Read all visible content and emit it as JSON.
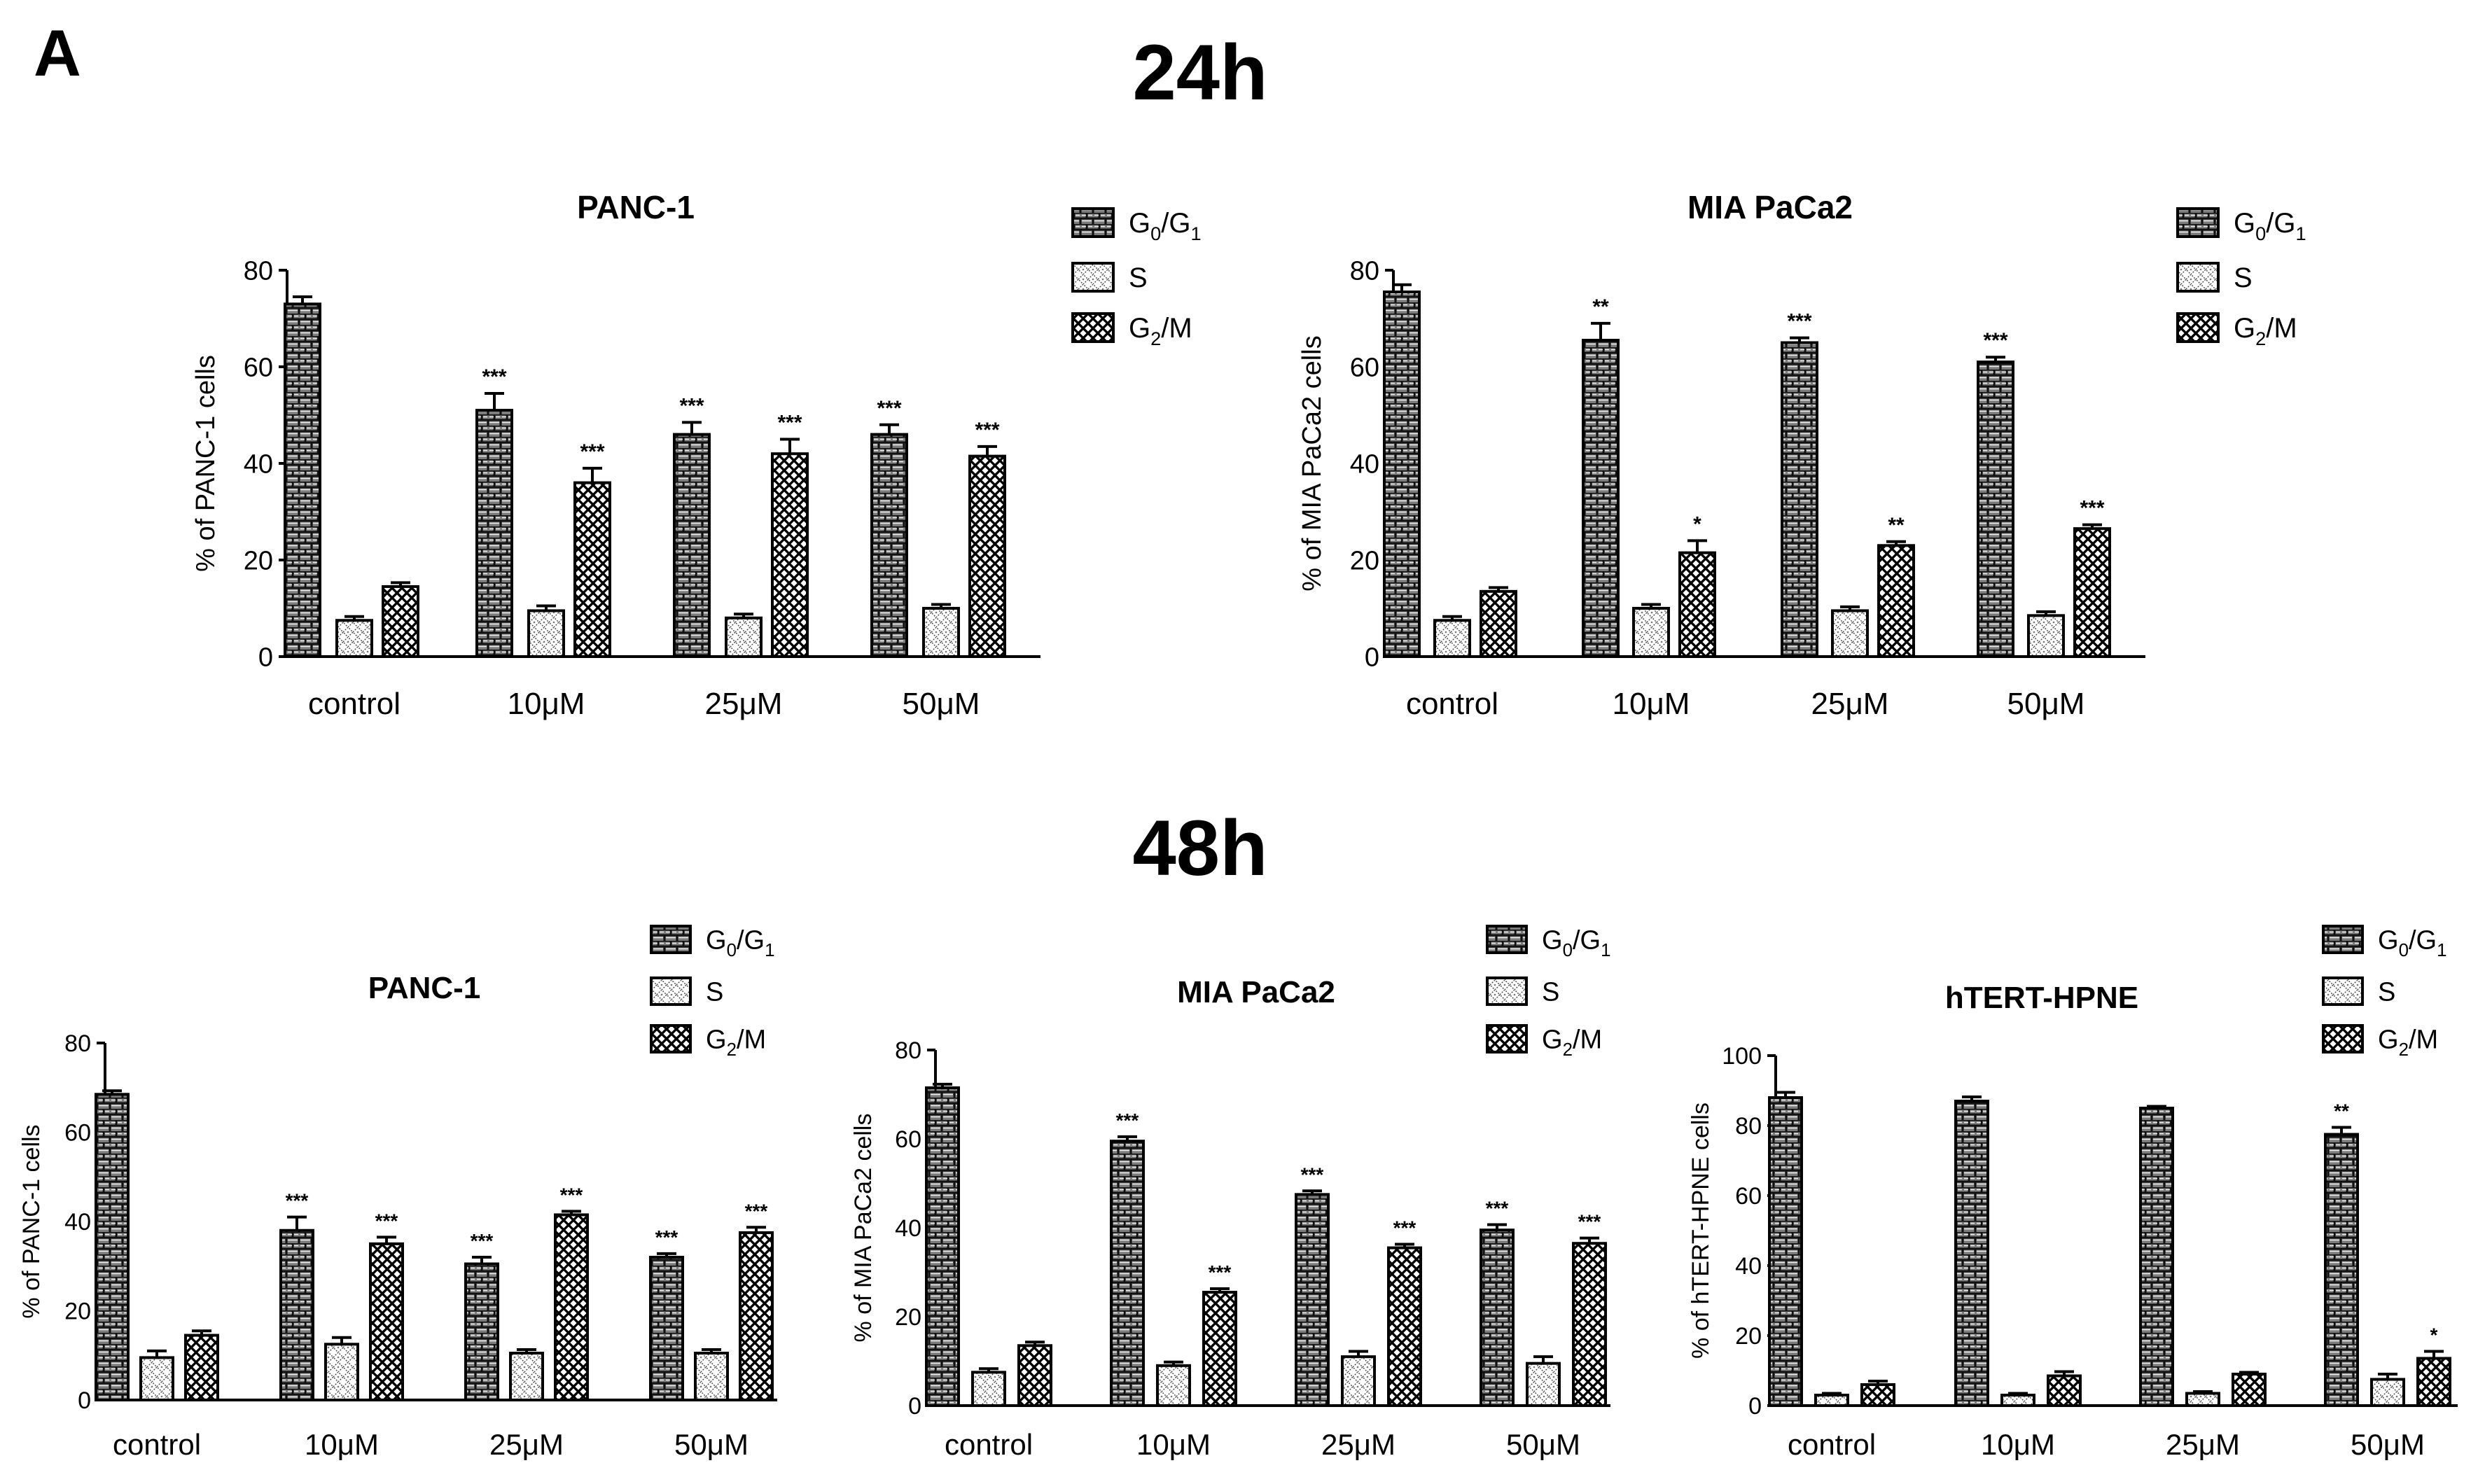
{
  "figure": {
    "panel_label": "A",
    "section_24h": "24h",
    "section_48h": "48h"
  },
  "legend": {
    "g0g1": {
      "main": "G",
      "sub1": "0",
      "mid": "/G",
      "sub2": "1"
    },
    "s": {
      "main": "S"
    },
    "g2m": {
      "main": "G",
      "sub1": "2",
      "rest": "/M"
    }
  },
  "chart_data": [
    {
      "id": "c24_panc",
      "type": "bar",
      "title": "PANC-1",
      "time": "24h",
      "ylabel": "% of PANC-1 cells",
      "ylim": [
        0,
        80
      ],
      "yticks": [
        0,
        20,
        40,
        60,
        80
      ],
      "categories": [
        "control",
        "10μM",
        "25μM",
        "50μM"
      ],
      "series": [
        {
          "name": "G0/G1",
          "values": [
            73,
            51,
            46,
            46
          ],
          "errors": [
            1.5,
            3.5,
            2.5,
            2
          ],
          "sig": [
            "",
            "***",
            "***",
            "***"
          ]
        },
        {
          "name": "S",
          "values": [
            7.5,
            9.5,
            8,
            10
          ],
          "errors": [
            0.8,
            1,
            0.8,
            0.8
          ],
          "sig": [
            "",
            "",
            "",
            ""
          ]
        },
        {
          "name": "G2/M",
          "values": [
            14.5,
            36,
            42,
            41.5
          ],
          "errors": [
            0.8,
            3,
            3,
            2
          ],
          "sig": [
            "",
            "***",
            "***",
            "***"
          ]
        }
      ]
    },
    {
      "id": "c24_mia",
      "type": "bar",
      "title": "MIA PaCa2",
      "time": "24h",
      "ylabel": "% of MIA PaCa2 cells",
      "ylim": [
        0,
        80
      ],
      "yticks": [
        0,
        20,
        40,
        60,
        80
      ],
      "categories": [
        "control",
        "10μM",
        "25μM",
        "50μM"
      ],
      "series": [
        {
          "name": "G0/G1",
          "values": [
            75.5,
            65.5,
            65,
            61
          ],
          "errors": [
            1.5,
            3.5,
            1,
            1
          ],
          "sig": [
            "",
            "**",
            "***",
            "***"
          ]
        },
        {
          "name": "S",
          "values": [
            7.5,
            10,
            9.5,
            8.5
          ],
          "errors": [
            0.8,
            0.8,
            0.8,
            0.8
          ],
          "sig": [
            "",
            "",
            "",
            ""
          ]
        },
        {
          "name": "G2/M",
          "values": [
            13.5,
            21.5,
            23,
            26.5
          ],
          "errors": [
            0.8,
            2.5,
            0.8,
            0.8
          ],
          "sig": [
            "",
            "*",
            "**",
            "***"
          ]
        }
      ]
    },
    {
      "id": "c48_panc",
      "type": "bar",
      "title": "PANC-1",
      "time": "48h",
      "ylabel": "% of PANC-1 cells",
      "ylim": [
        0,
        80
      ],
      "yticks": [
        0,
        20,
        40,
        60,
        80
      ],
      "categories": [
        "control",
        "10μM",
        "25μM",
        "50μM"
      ],
      "series": [
        {
          "name": "G0/G1",
          "values": [
            68.5,
            38,
            30.5,
            32
          ],
          "errors": [
            0.8,
            3,
            1.5,
            0.8
          ],
          "sig": [
            "",
            "***",
            "***",
            "***"
          ]
        },
        {
          "name": "S",
          "values": [
            9.5,
            12.5,
            10.5,
            10.5
          ],
          "errors": [
            1.5,
            1.5,
            0.8,
            0.8
          ],
          "sig": [
            "",
            "",
            "",
            ""
          ]
        },
        {
          "name": "G2/M",
          "values": [
            14.5,
            35,
            41.5,
            37.5
          ],
          "errors": [
            1,
            1.5,
            0.8,
            1.2
          ],
          "sig": [
            "",
            "***",
            "***",
            "***"
          ]
        }
      ]
    },
    {
      "id": "c48_mia",
      "type": "bar",
      "title": "MIA PaCa2",
      "time": "48h",
      "ylabel": "% of MIA PaCa2 cells",
      "ylim": [
        0,
        80
      ],
      "yticks": [
        0,
        20,
        40,
        60,
        80
      ],
      "categories": [
        "control",
        "10μM",
        "25μM",
        "50μM"
      ],
      "series": [
        {
          "name": "G0/G1",
          "values": [
            71.5,
            59.5,
            47.5,
            39.5
          ],
          "errors": [
            0.8,
            1,
            0.8,
            1.2
          ],
          "sig": [
            "",
            "***",
            "***",
            "***"
          ]
        },
        {
          "name": "S",
          "values": [
            7.5,
            9,
            11,
            9.5
          ],
          "errors": [
            0.8,
            0.8,
            1.2,
            1.5
          ],
          "sig": [
            "",
            "",
            "",
            ""
          ]
        },
        {
          "name": "G2/M",
          "values": [
            13.5,
            25.5,
            35.5,
            36.5
          ],
          "errors": [
            0.8,
            0.8,
            0.8,
            1.2
          ],
          "sig": [
            "",
            "***",
            "***",
            "***"
          ]
        }
      ]
    },
    {
      "id": "c48_hpne",
      "type": "bar",
      "title": "hTERT-HPNE",
      "time": "48h",
      "ylabel": "% of hTERT-HPNE cells",
      "ylim": [
        0,
        100
      ],
      "yticks": [
        0,
        20,
        40,
        60,
        80,
        100
      ],
      "categories": [
        "control",
        "10μM",
        "25μM",
        "50μM"
      ],
      "series": [
        {
          "name": "G0/G1",
          "values": [
            88,
            87,
            85,
            77.5
          ],
          "errors": [
            1.5,
            1.2,
            0.5,
            2
          ],
          "sig": [
            "",
            "",
            "",
            "**"
          ]
        },
        {
          "name": "S",
          "values": [
            3,
            3,
            3.5,
            7.5
          ],
          "errors": [
            0.5,
            0.5,
            0.5,
            1.5
          ],
          "sig": [
            "",
            "",
            "",
            ""
          ]
        },
        {
          "name": "G2/M",
          "values": [
            6,
            8.5,
            9,
            13.5
          ],
          "errors": [
            1,
            1.2,
            0.5,
            2
          ],
          "sig": [
            "",
            "",
            "",
            "*"
          ]
        }
      ]
    }
  ]
}
